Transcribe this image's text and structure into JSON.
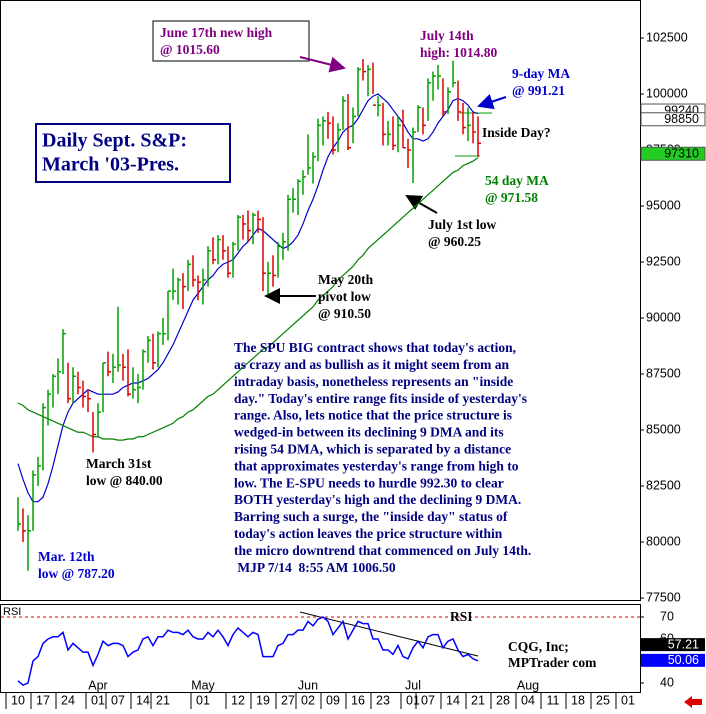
{
  "chart_data": {
    "type": "ohlc",
    "title": [
      "Daily Sept. S&P:",
      "March '03-Pres."
    ],
    "categories": [
      "10",
      null,
      null,
      null,
      null,
      "17",
      null,
      null,
      null,
      null,
      "24",
      null,
      null,
      null,
      null,
      null,
      "01",
      null,
      null,
      null,
      "07",
      null,
      null,
      null,
      null,
      "14",
      null,
      null,
      null,
      "21",
      null,
      null,
      null,
      null,
      null,
      null,
      null,
      "01",
      null,
      null,
      null,
      null,
      null,
      null,
      "12",
      null,
      null,
      null,
      null,
      "19",
      null,
      null,
      null,
      null,
      "27",
      null,
      null,
      null,
      "02",
      null,
      null,
      null,
      null,
      "09",
      null,
      null,
      null,
      null,
      "16",
      null,
      null,
      null,
      null,
      "23",
      null,
      null,
      null,
      null,
      null,
      "01",
      null,
      null,
      "07",
      null,
      null,
      null,
      null,
      "14",
      null,
      null,
      null,
      null,
      "21",
      null,
      null,
      null,
      null,
      "28",
      null,
      null,
      null,
      null,
      "04",
      null,
      null,
      null,
      null,
      "11",
      null,
      null,
      null,
      null,
      "18",
      null,
      null,
      null,
      null,
      "25",
      null,
      null,
      null,
      null,
      "01"
    ],
    "months": [
      null,
      null,
      null,
      null,
      null,
      null,
      null,
      null,
      null,
      null,
      null,
      null,
      null,
      null,
      null,
      null,
      "Apr",
      null,
      null,
      null,
      null,
      null,
      null,
      null,
      null,
      null,
      null,
      null,
      null,
      null,
      null,
      null,
      null,
      null,
      null,
      null,
      null,
      "May",
      null,
      null,
      null,
      null,
      null,
      null,
      null,
      null,
      null,
      null,
      null,
      null,
      null,
      null,
      null,
      null,
      null,
      null,
      null,
      null,
      "Jun",
      null,
      null,
      null,
      null,
      null,
      null,
      null,
      null,
      null,
      null,
      null,
      null,
      null,
      null,
      null,
      null,
      null,
      null,
      null,
      null,
      "Jul",
      null,
      null,
      null,
      null,
      null,
      null,
      null,
      null,
      null,
      null,
      null,
      null,
      null,
      null,
      null,
      null,
      null,
      null,
      null,
      null,
      null,
      null,
      "Aug",
      null,
      null,
      null,
      null,
      null,
      null,
      null,
      null,
      null,
      null,
      null,
      null,
      null,
      null,
      null,
      null,
      null,
      null,
      null,
      null
    ],
    "ylim": [
      77412,
      104196
    ],
    "yticks": [
      77500,
      80000,
      82500,
      85000,
      87500,
      90000,
      92500,
      95000,
      97500,
      100000,
      102500
    ],
    "up_color": "#00a000",
    "down_color": "#e00000",
    "high": [
      82000,
      81500,
      81200,
      83200,
      83800,
      86200,
      86800,
      87500,
      88200,
      89500,
      88000,
      87800,
      87600,
      87200,
      86800,
      85800,
      86200,
      88000,
      88500,
      88400,
      90500,
      88400,
      88600,
      87800,
      87500,
      88600,
      89200,
      89300,
      89400,
      90000,
      91200,
      92200,
      91800,
      92000,
      92600,
      92800,
      91900,
      92200,
      93200,
      93600,
      93700,
      93700,
      93200,
      93400,
      94600,
      94600,
      94800,
      94700,
      94800,
      94500,
      92500,
      92800,
      93400,
      93800,
      95500,
      95800,
      96200,
      96600,
      98200,
      97400,
      98900,
      99000,
      99200,
      99000,
      98700,
      99900,
      100000,
      99400,
      101200,
      101560,
      101300,
      101400,
      99900,
      99600,
      98800,
      99000,
      99000,
      99300,
      98000,
      98500,
      99500,
      99400,
      100700,
      101000,
      101300,
      100700,
      100300,
      101480,
      100600,
      99600,
      99400,
      99200,
      99000,
      null,
      null,
      null,
      null,
      null,
      null,
      null,
      null,
      null,
      null,
      null,
      null,
      null,
      null,
      null,
      null,
      null,
      null,
      null,
      null,
      null,
      null,
      null,
      null,
      null,
      null,
      null,
      null,
      null,
      null
    ],
    "low": [
      80500,
      80000,
      78720,
      80500,
      82500,
      83200,
      85200,
      86000,
      86600,
      87500,
      86200,
      86200,
      86600,
      86000,
      85800,
      84000,
      84700,
      85800,
      87400,
      87100,
      87600,
      87200,
      86500,
      86400,
      86200,
      86800,
      88000,
      87700,
      87800,
      88800,
      89000,
      90800,
      90600,
      90400,
      91200,
      91400,
      90800,
      90600,
      91400,
      92400,
      92400,
      92600,
      91800,
      91800,
      93000,
      93500,
      93400,
      93300,
      93800,
      91200,
      91050,
      91400,
      91800,
      92600,
      93000,
      94700,
      94600,
      95500,
      96400,
      96000,
      97000,
      97700,
      98000,
      97300,
      97400,
      98400,
      97500,
      97800,
      99000,
      100600,
      99900,
      100000,
      99000,
      97700,
      97700,
      97500,
      97400,
      97600,
      96700,
      96025,
      98300,
      98200,
      98800,
      99700,
      100200,
      99000,
      99100,
      100300,
      98800,
      98200,
      97900,
      97800,
      97200,
      null,
      null,
      null,
      null,
      null,
      null,
      null,
      null,
      null,
      null,
      null,
      null,
      null,
      null,
      null,
      null,
      null,
      null,
      null,
      null,
      null,
      null,
      null,
      null,
      null,
      null,
      null,
      null,
      null,
      null
    ],
    "close": [
      80800,
      80500,
      80500,
      83000,
      83400,
      86000,
      86600,
      87400,
      87600,
      89300,
      86400,
      87400,
      86900,
      86500,
      86400,
      84800,
      85800,
      88000,
      87600,
      87800,
      87900,
      87800,
      86600,
      86800,
      86900,
      88500,
      89000,
      88000,
      89300,
      89300,
      91200,
      91200,
      91700,
      91400,
      92400,
      91700,
      91600,
      91700,
      93000,
      92600,
      93500,
      93000,
      92000,
      93300,
      94500,
      94200,
      93900,
      94600,
      94400,
      92000,
      92000,
      91900,
      93200,
      93400,
      95300,
      95300,
      96100,
      96300,
      96700,
      97200,
      98600,
      98800,
      98700,
      97500,
      98400,
      99700,
      97600,
      99000,
      101100,
      101000,
      101100,
      99500,
      99500,
      98200,
      98200,
      97700,
      98600,
      97600,
      97500,
      98300,
      99400,
      98600,
      100500,
      100800,
      100800,
      99200,
      100100,
      100500,
      99200,
      98500,
      98600,
      98300,
      97800,
      null,
      null,
      null,
      null,
      null,
      null,
      null,
      null,
      null,
      null,
      null,
      null,
      null,
      null,
      null,
      null,
      null,
      null,
      null,
      null,
      null,
      null,
      null,
      null,
      null,
      null,
      null,
      null,
      null,
      null
    ],
    "lines": [
      {
        "color": "#0000cc",
        "values": [
          83500,
          82800,
          82200,
          81800,
          81800,
          82000,
          82600,
          83400,
          84300,
          85200,
          85800,
          86200,
          86400,
          86600,
          86800,
          86700,
          86600,
          86600,
          86600,
          86600,
          86700,
          86900,
          87000,
          87100,
          87100,
          87200,
          87300,
          87500,
          87700,
          88000,
          88400,
          88800,
          89300,
          89800,
          90300,
          90800,
          91100,
          91400,
          91700,
          91900,
          92200,
          92400,
          92500,
          92600,
          92900,
          93200,
          93400,
          93700,
          94000,
          93900,
          93700,
          93500,
          93300,
          93100,
          93200,
          93400,
          93700,
          94200,
          94800,
          95300,
          95900,
          96600,
          97200,
          97600,
          97900,
          98300,
          98500,
          98600,
          98900,
          99300,
          99700,
          99900,
          100000,
          99800,
          99600,
          99300,
          99000,
          98700,
          98300,
          98000,
          98000,
          97900,
          98000,
          98300,
          98700,
          99000,
          99300,
          99700,
          99800,
          99700,
          99500,
          99200,
          99121,
          null,
          null,
          null,
          null,
          null,
          null,
          null,
          null,
          null,
          null,
          null,
          null,
          null,
          null,
          null,
          null,
          null,
          null,
          null,
          null,
          null,
          null,
          null,
          null,
          null,
          null,
          null,
          null,
          null,
          null
        ]
      },
      {
        "color": "#008000",
        "values": [
          86200,
          86100,
          85900,
          85800,
          85700,
          85600,
          85500,
          85400,
          85300,
          85200,
          85100,
          85000,
          84900,
          84900,
          84800,
          84700,
          84700,
          84600,
          84600,
          84600,
          84550,
          84550,
          84600,
          84600,
          84700,
          84700,
          84800,
          84900,
          85000,
          85100,
          85200,
          85300,
          85500,
          85600,
          85800,
          85900,
          86100,
          86300,
          86500,
          86600,
          86800,
          87000,
          87200,
          87400,
          87600,
          87800,
          88000,
          88200,
          88400,
          88600,
          88700,
          88900,
          89100,
          89300,
          89500,
          89700,
          89900,
          90100,
          90300,
          90500,
          90800,
          91000,
          91200,
          91400,
          91700,
          91900,
          92100,
          92300,
          92600,
          92800,
          93100,
          93300,
          93500,
          93700,
          93900,
          94100,
          94300,
          94500,
          94700,
          94900,
          95100,
          95300,
          95500,
          95700,
          95900,
          96100,
          96300,
          96500,
          96600,
          96800,
          96900,
          97000,
          97158,
          null,
          null,
          null,
          null,
          null,
          null,
          null,
          null,
          null,
          null,
          null,
          null,
          null,
          null,
          null,
          null,
          null,
          null,
          null,
          null,
          null,
          null,
          null,
          null,
          null,
          null,
          null,
          null,
          null,
          null
        ]
      }
    ],
    "price_markers": [
      {
        "value": 99240,
        "fill": "#ffffff",
        "text_color": "#000000"
      },
      {
        "value": 98850,
        "fill": "#ffffff",
        "text_color": "#000000"
      },
      {
        "value": 97310,
        "fill": "#22cc22",
        "text_color": "#000000"
      }
    ],
    "annotations": [
      {
        "lines": [
          "June 17th new high",
          "@ 1015.60"
        ],
        "color": "#800080"
      },
      {
        "lines": [
          "July 14th",
          "high: 1014.80"
        ],
        "color": "#800080"
      },
      {
        "lines": [
          "9-day MA",
          "@ 991.21"
        ],
        "color": "#0000cc"
      },
      {
        "lines": [
          "Inside Day?"
        ],
        "color": "#000000"
      },
      {
        "lines": [
          "54 day MA",
          "@ 971.58"
        ],
        "color": "#008000"
      },
      {
        "lines": [
          "July 1st low",
          "@ 960.25"
        ],
        "color": "#000000"
      },
      {
        "lines": [
          "May 20th",
          "pivot low",
          "@ 910.50"
        ],
        "color": "#000000"
      },
      {
        "lines": [
          "March 31st",
          "low @ 840.00"
        ],
        "color": "#000000"
      },
      {
        "lines": [
          "Mar. 12th",
          "low @ 787.20"
        ],
        "color": "#0000cc"
      }
    ],
    "commentary": [
      "The SPU BIG contract shows that today's action,",
      "as crazy and as bullish as it might seem from an",
      "intraday basis, nonetheless represents an \"inside",
      "day.\" Today's entire range fits inside of yesterday's",
      "range. Also, lets notice that the price structure is",
      "wedged-in between its declining 9 DMA and its",
      "rising 54 DMA, which is separated by a distance",
      "that approximates yesterday's range from high to",
      "low. The E-SPU needs to hurdle 992.30 to clear",
      "BOTH yesterday's high and the declining 9 DMA.",
      "Barring such a surge, the \"inside day\" status of",
      "today's action leaves the price structure within",
      "the micro downtrend that commenced on July 14th.",
      " MJP 7/14  8:55 AM 1006.50"
    ],
    "credit": [
      "CQG, Inc;",
      "MPTrader com"
    ],
    "rsi": {
      "type": "line",
      "panel_label": "RSI",
      "label": "RSI",
      "color": "#0000ff",
      "ylim": [
        35.9,
        75.9
      ],
      "yticks": [
        40,
        60,
        70
      ],
      "reference_line": 70,
      "reference_color": "#e00000",
      "values": [
        41,
        39,
        40,
        50,
        52,
        58,
        60,
        61,
        61,
        63,
        55,
        58,
        56,
        54,
        54,
        48,
        53,
        59,
        57,
        58,
        58,
        57,
        52,
        54,
        55,
        60,
        61,
        57,
        61,
        61,
        64,
        63,
        63,
        62,
        64,
        61,
        60,
        60,
        63,
        61,
        64,
        61,
        57,
        62,
        65,
        63,
        61,
        63,
        62,
        52,
        52,
        52,
        57,
        58,
        62,
        62,
        64,
        64,
        68,
        66,
        69,
        70,
        68,
        62,
        65,
        68,
        60,
        64,
        68,
        67,
        67,
        60,
        60,
        55,
        55,
        53,
        57,
        52,
        51,
        56,
        59,
        56,
        61,
        62,
        62,
        56,
        59,
        60,
        55,
        52,
        53,
        51,
        50.06,
        null,
        null,
        null,
        null,
        null,
        null,
        null,
        null,
        null,
        null,
        null,
        null,
        null,
        null,
        null,
        null,
        null,
        null,
        null,
        null,
        null,
        null,
        null,
        null,
        null,
        null,
        null,
        null,
        null,
        null
      ],
      "markers": [
        {
          "value": 57.21,
          "fill": "#000000",
          "text_color": "#ffffff"
        },
        {
          "value": 50.06,
          "fill": "#0000ff",
          "text_color": "#ffffff"
        }
      ]
    }
  }
}
